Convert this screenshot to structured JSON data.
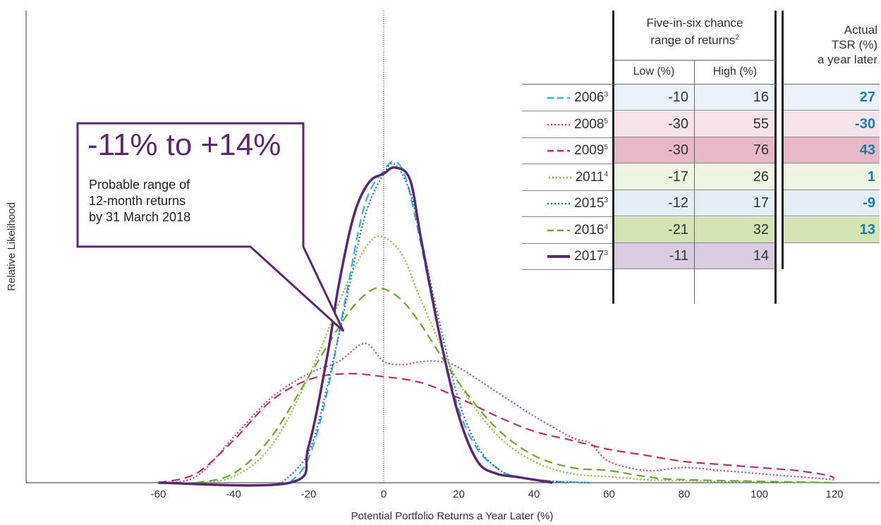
{
  "chart_data": {
    "type": "line",
    "xlabel": "Potential Portfolio Returns a Year Later (%)",
    "ylabel": "Relative Likelihood",
    "xlim": [
      -60,
      120
    ],
    "x_ticks": [
      "-60",
      "-40",
      "-20",
      "0",
      "20",
      "40",
      "60",
      "80",
      "100",
      "120"
    ],
    "grid": false,
    "series": [
      {
        "name": "2006",
        "style": "dashed",
        "color": "#3aaee0",
        "points": [
          [
            -25,
            0
          ],
          [
            -20,
            0.08
          ],
          [
            -15,
            0.3
          ],
          [
            -10,
            0.62
          ],
          [
            -5,
            0.92
          ],
          [
            0,
            1.03
          ],
          [
            3,
            1.06
          ],
          [
            6,
            1.0
          ],
          [
            10,
            0.78
          ],
          [
            15,
            0.48
          ],
          [
            20,
            0.24
          ],
          [
            25,
            0.11
          ],
          [
            30,
            0.05
          ],
          [
            35,
            0.02
          ],
          [
            45,
            0.005
          ],
          [
            55,
            0.0
          ]
        ]
      },
      {
        "name": "2008",
        "style": "dotted",
        "color": "#b04a86",
        "points": [
          [
            -60,
            0
          ],
          [
            -50,
            0.02
          ],
          [
            -40,
            0.15
          ],
          [
            -30,
            0.28
          ],
          [
            -20,
            0.36
          ],
          [
            -12,
            0.4
          ],
          [
            -5,
            0.46
          ],
          [
            0,
            0.4
          ],
          [
            5,
            0.39
          ],
          [
            10,
            0.4
          ],
          [
            15,
            0.4
          ],
          [
            20,
            0.38
          ],
          [
            30,
            0.3
          ],
          [
            40,
            0.22
          ],
          [
            50,
            0.15
          ],
          [
            55,
            0.13
          ],
          [
            60,
            0.07
          ],
          [
            70,
            0.04
          ],
          [
            80,
            0.05
          ],
          [
            90,
            0.04
          ],
          [
            100,
            0.03
          ],
          [
            110,
            0.02
          ],
          [
            120,
            0.01
          ]
        ]
      },
      {
        "name": "2009",
        "style": "dashed",
        "color": "#b3316e",
        "points": [
          [
            -60,
            0
          ],
          [
            -50,
            0.03
          ],
          [
            -40,
            0.14
          ],
          [
            -30,
            0.27
          ],
          [
            -20,
            0.34
          ],
          [
            -10,
            0.36
          ],
          [
            0,
            0.35
          ],
          [
            10,
            0.33
          ],
          [
            20,
            0.28
          ],
          [
            30,
            0.22
          ],
          [
            40,
            0.17
          ],
          [
            50,
            0.14
          ],
          [
            60,
            0.11
          ],
          [
            70,
            0.09
          ],
          [
            80,
            0.07
          ],
          [
            90,
            0.06
          ],
          [
            100,
            0.05
          ],
          [
            110,
            0.04
          ],
          [
            118,
            0.025
          ],
          [
            120,
            0.015
          ]
        ]
      },
      {
        "name": "2011",
        "style": "dotted",
        "color": "#8db83a",
        "points": [
          [
            -50,
            0
          ],
          [
            -40,
            0.02
          ],
          [
            -30,
            0.12
          ],
          [
            -20,
            0.35
          ],
          [
            -10,
            0.65
          ],
          [
            -4,
            0.79
          ],
          [
            0,
            0.81
          ],
          [
            5,
            0.75
          ],
          [
            10,
            0.6
          ],
          [
            20,
            0.33
          ],
          [
            30,
            0.16
          ],
          [
            40,
            0.07
          ],
          [
            50,
            0.03
          ],
          [
            60,
            0.02
          ],
          [
            70,
            0.01
          ],
          [
            85,
            0.005
          ],
          [
            120,
            0.0
          ]
        ]
      },
      {
        "name": "2015",
        "style": "dotted",
        "color": "#2a6fb0",
        "points": [
          [
            -27,
            0
          ],
          [
            -20,
            0.1
          ],
          [
            -15,
            0.32
          ],
          [
            -10,
            0.6
          ],
          [
            -5,
            0.88
          ],
          [
            0,
            1.02
          ],
          [
            3,
            1.05
          ],
          [
            7,
            0.96
          ],
          [
            10,
            0.8
          ],
          [
            15,
            0.52
          ],
          [
            20,
            0.27
          ],
          [
            25,
            0.12
          ],
          [
            30,
            0.05
          ],
          [
            35,
            0.02
          ],
          [
            45,
            0.005
          ],
          [
            55,
            0.0
          ]
        ]
      },
      {
        "name": "2016",
        "style": "dashed",
        "color": "#6aa832",
        "points": [
          [
            -50,
            0
          ],
          [
            -40,
            0.03
          ],
          [
            -30,
            0.15
          ],
          [
            -20,
            0.35
          ],
          [
            -10,
            0.55
          ],
          [
            -4,
            0.63
          ],
          [
            0,
            0.64
          ],
          [
            5,
            0.6
          ],
          [
            10,
            0.52
          ],
          [
            20,
            0.33
          ],
          [
            30,
            0.18
          ],
          [
            40,
            0.09
          ],
          [
            50,
            0.05
          ],
          [
            60,
            0.04
          ],
          [
            70,
            0.02
          ],
          [
            80,
            0.01
          ],
          [
            120,
            0.0
          ]
        ]
      },
      {
        "name": "2017",
        "style": "solid",
        "color": "#5a2a6e",
        "points": [
          [
            -60,
            0
          ],
          [
            -25,
            0
          ],
          [
            -20,
            0.12
          ],
          [
            -15,
            0.42
          ],
          [
            -12,
            0.65
          ],
          [
            -8,
            0.88
          ],
          [
            -4,
            0.99
          ],
          [
            0,
            1.02
          ],
          [
            3,
            1.04
          ],
          [
            7,
            1.0
          ],
          [
            10,
            0.8
          ],
          [
            15,
            0.48
          ],
          [
            20,
            0.22
          ],
          [
            25,
            0.07
          ],
          [
            30,
            0.03
          ],
          [
            35,
            0.02
          ],
          [
            40,
            0.01
          ],
          [
            45,
            0.0
          ]
        ]
      }
    ]
  },
  "table": {
    "header_range": [
      "Five-in-six chance",
      "range of returns"
    ],
    "header_range_sup": "2",
    "header_actual": [
      "Actual",
      "TSR (%)",
      "a year later"
    ],
    "col_low": "Low (%)",
    "col_high": "High (%)",
    "rows": [
      {
        "year": "2006",
        "sup": "3",
        "low": "-10",
        "high": "16",
        "actual": "27",
        "color": "#3aaee0",
        "style": "dashed",
        "bg": "#eaf2fa"
      },
      {
        "year": "2008",
        "sup": "5",
        "low": "-30",
        "high": "55",
        "actual": "-30",
        "color": "#b04a86",
        "style": "dotted",
        "bg": "#f7e3ea"
      },
      {
        "year": "2009",
        "sup": "5",
        "low": "-30",
        "high": "76",
        "actual": "43",
        "color": "#b3316e",
        "style": "dashed",
        "bg": "#e6b8c8"
      },
      {
        "year": "2011",
        "sup": "4",
        "low": "-17",
        "high": "26",
        "actual": "1",
        "color": "#8db83a",
        "style": "dotted",
        "bg": "#eff4e3"
      },
      {
        "year": "2015",
        "sup": "3",
        "low": "-12",
        "high": "17",
        "actual": "-9",
        "color": "#2a6fb0",
        "style": "dotted",
        "bg": "#e3eef5"
      },
      {
        "year": "2016",
        "sup": "4",
        "low": "-21",
        "high": "32",
        "actual": "13",
        "color": "#6aa832",
        "style": "dashed",
        "bg": "#d4e4b4"
      },
      {
        "year": "2017",
        "sup": "3",
        "low": "-11",
        "high": "14",
        "actual": "",
        "color": "#5a2a6e",
        "style": "solid",
        "bg": "#d9cce0"
      }
    ]
  },
  "callout": {
    "range": "-11% to +14%",
    "line1": "Probable range of",
    "line2": "12-month returns",
    "line3": "by 31 March 2018"
  }
}
